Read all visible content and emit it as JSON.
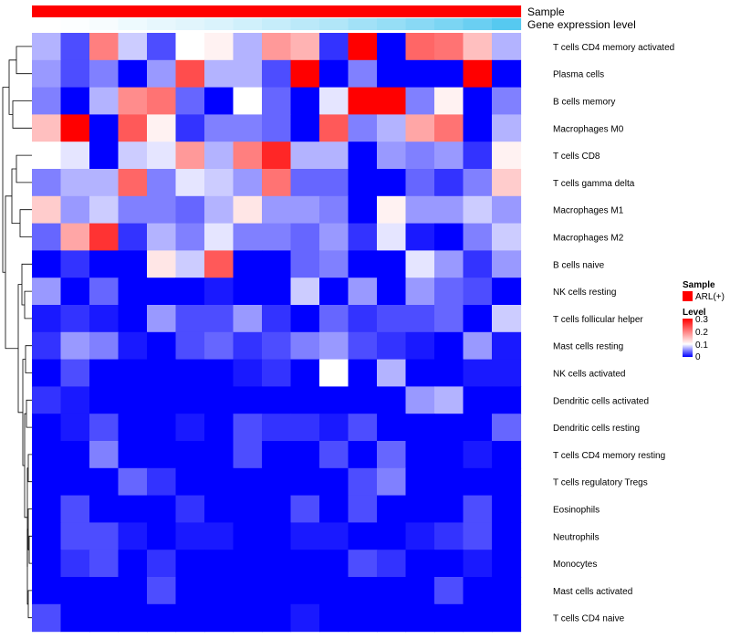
{
  "chart_data": {
    "type": "heatmap",
    "rows": [
      "T cells CD4 memory activated",
      "Plasma cells",
      "B cells memory",
      "Macrophages M0",
      "T cells CD8",
      "T cells gamma delta",
      "Macrophages M1",
      "Macrophages M2",
      "B cells naive",
      "NK cells resting",
      "T cells follicular helper",
      "Mast cells resting",
      "NK cells activated",
      "Dendritic cells activated",
      "Dendritic cells resting",
      "T cells CD4 memory resting",
      "T cells regulatory  Tregs",
      "Eosinophils",
      "Neutrophils",
      "Monocytes",
      "Mast cells activated",
      "T cells CD4 naive"
    ],
    "values": [
      [
        0.07,
        0.03,
        0.2,
        0.08,
        0.03,
        0.1,
        0.11,
        0.07,
        0.18,
        0.16,
        0.02,
        0.3,
        0.0,
        0.22,
        0.21,
        0.15,
        0.07
      ],
      [
        0.06,
        0.03,
        0.05,
        0.0,
        0.06,
        0.24,
        0.07,
        0.07,
        0.03,
        0.3,
        0.0,
        0.05,
        0.0,
        0.0,
        0.0,
        0.3,
        0.0
      ],
      [
        0.05,
        0.0,
        0.07,
        0.19,
        0.21,
        0.04,
        0.0,
        0.1,
        0.04,
        0.0,
        0.09,
        0.3,
        0.3,
        0.05,
        0.11,
        0.0,
        0.05
      ],
      [
        0.15,
        0.3,
        0.0,
        0.23,
        0.11,
        0.02,
        0.05,
        0.05,
        0.04,
        0.0,
        0.23,
        0.05,
        0.07,
        0.17,
        0.21,
        0.0,
        0.07
      ],
      [
        0.1,
        0.09,
        0.0,
        0.08,
        0.09,
        0.18,
        0.07,
        0.2,
        0.27,
        0.07,
        0.07,
        0.0,
        0.06,
        0.05,
        0.06,
        0.02,
        0.11
      ],
      [
        0.05,
        0.07,
        0.07,
        0.22,
        0.05,
        0.09,
        0.08,
        0.06,
        0.21,
        0.04,
        0.04,
        0.0,
        0.0,
        0.04,
        0.02,
        0.05,
        0.14
      ],
      [
        0.14,
        0.06,
        0.08,
        0.05,
        0.05,
        0.04,
        0.07,
        0.12,
        0.06,
        0.06,
        0.05,
        0.0,
        0.11,
        0.06,
        0.06,
        0.08,
        0.06
      ],
      [
        0.04,
        0.17,
        0.26,
        0.02,
        0.07,
        0.05,
        0.09,
        0.05,
        0.05,
        0.04,
        0.06,
        0.02,
        0.09,
        0.01,
        0.0,
        0.05,
        0.08
      ],
      [
        0.0,
        0.02,
        0.0,
        0.0,
        0.12,
        0.08,
        0.23,
        0.0,
        0.0,
        0.04,
        0.05,
        0.0,
        0.0,
        0.09,
        0.06,
        0.02,
        0.06
      ],
      [
        0.06,
        0.0,
        0.04,
        0.0,
        0.0,
        0.0,
        0.01,
        0.0,
        0.0,
        0.08,
        0.0,
        0.06,
        0.0,
        0.06,
        0.04,
        0.03,
        0.0
      ],
      [
        0.01,
        0.02,
        0.01,
        0.0,
        0.06,
        0.03,
        0.03,
        0.06,
        0.02,
        0.0,
        0.04,
        0.02,
        0.03,
        0.03,
        0.04,
        0.0,
        0.08
      ],
      [
        0.02,
        0.06,
        0.05,
        0.01,
        0.0,
        0.03,
        0.04,
        0.02,
        0.03,
        0.05,
        0.06,
        0.03,
        0.02,
        0.01,
        0.0,
        0.06,
        0.01
      ],
      [
        0.0,
        0.03,
        0.0,
        0.0,
        0.0,
        0.0,
        0.0,
        0.01,
        0.02,
        0.0,
        0.1,
        0.0,
        0.07,
        0.0,
        0.0,
        0.01,
        0.01
      ],
      [
        0.02,
        0.01,
        0.0,
        0.0,
        0.0,
        0.0,
        0.0,
        0.0,
        0.0,
        0.0,
        0.0,
        0.0,
        0.0,
        0.06,
        0.07,
        0.0,
        0.0
      ],
      [
        0.0,
        0.01,
        0.03,
        0.0,
        0.0,
        0.01,
        0.0,
        0.03,
        0.02,
        0.02,
        0.01,
        0.03,
        0.0,
        0.0,
        0.0,
        0.0,
        0.04
      ],
      [
        0.0,
        0.0,
        0.05,
        0.0,
        0.0,
        0.0,
        0.0,
        0.03,
        0.0,
        0.0,
        0.03,
        0.0,
        0.04,
        0.0,
        0.0,
        0.01,
        0.0
      ],
      [
        0.0,
        0.0,
        0.0,
        0.04,
        0.02,
        0.0,
        0.0,
        0.0,
        0.0,
        0.0,
        0.0,
        0.03,
        0.05,
        0.0,
        0.0,
        0.0,
        0.0
      ],
      [
        0.0,
        0.03,
        0.0,
        0.0,
        0.0,
        0.02,
        0.0,
        0.0,
        0.0,
        0.03,
        0.0,
        0.03,
        0.0,
        0.0,
        0.0,
        0.03,
        0.0
      ],
      [
        0.0,
        0.03,
        0.03,
        0.01,
        0.0,
        0.01,
        0.01,
        0.0,
        0.0,
        0.01,
        0.01,
        0.0,
        0.0,
        0.01,
        0.02,
        0.03,
        0.0
      ],
      [
        0.0,
        0.02,
        0.03,
        0.0,
        0.02,
        0.0,
        0.0,
        0.0,
        0.0,
        0.0,
        0.0,
        0.03,
        0.02,
        0.0,
        0.0,
        0.01,
        0.0
      ],
      [
        0.0,
        0.0,
        0.0,
        0.0,
        0.03,
        0.0,
        0.0,
        0.0,
        0.0,
        0.0,
        0.0,
        0.0,
        0.0,
        0.0,
        0.03,
        0.0,
        0.0
      ],
      [
        0.03,
        0.0,
        0.0,
        0.0,
        0.0,
        0.0,
        0.0,
        0.0,
        0.0,
        0.01,
        0.0,
        0.0,
        0.0,
        0.0,
        0.0,
        0.0,
        0.0
      ]
    ],
    "annotation_sample_label": "Sample",
    "annotation_expression_label": "Gene expression level",
    "expression_level": [
      0.0,
      0.02,
      0.05,
      0.1,
      0.14,
      0.18,
      0.22,
      0.28,
      0.34,
      0.4,
      0.46,
      0.55,
      0.62,
      0.7,
      0.78,
      0.88,
      1.0
    ],
    "legend": {
      "sample_title": "Sample",
      "sample_entry": "ARL(+)",
      "level_title": "Level",
      "level_ticks": [
        "0.3",
        "0.2",
        "0.1",
        "0"
      ]
    },
    "scale": {
      "min": 0,
      "mid": 0.1,
      "max": 0.3
    },
    "colors": {
      "low": "#0000ff",
      "mid": "#ffffff",
      "high": "#ff0000",
      "sample": "#ff0000",
      "expr_low": "#ffffff",
      "expr_high": "#56c9f0",
      "dendrogram": "#000000"
    }
  }
}
